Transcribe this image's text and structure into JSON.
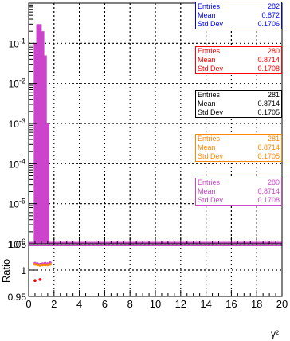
{
  "chart_data": {
    "type": "histogram",
    "xlabel": "γ²",
    "ylabel_bottom": "Ratio",
    "xlim": [
      0,
      20
    ],
    "ylim_top": [
      1e-06,
      1
    ],
    "yscale_top": "log",
    "ylim_bottom": [
      0.95,
      1.05
    ],
    "x_ticks": [
      "0",
      "2",
      "4",
      "6",
      "8",
      "10",
      "12",
      "14",
      "16",
      "18",
      "20"
    ],
    "y_ticks_top": [
      {
        "base": "10",
        "exp": "-1",
        "value": 0.1
      },
      {
        "base": "10",
        "exp": "-2",
        "value": 0.01
      },
      {
        "base": "10",
        "exp": "-3",
        "value": 0.001
      },
      {
        "base": "10",
        "exp": "-4",
        "value": 0.0001
      },
      {
        "base": "10",
        "exp": "-5",
        "value": 1e-05
      },
      {
        "base": "10",
        "exp": "-6",
        "value": 1e-06
      }
    ],
    "y_ticks_bottom": [
      "0.95",
      "1",
      "1.05"
    ],
    "grid": true,
    "bin_width": 0.2,
    "histogram": {
      "bin_low": [
        0.4,
        0.6,
        0.8,
        1.0,
        1.2,
        1.4
      ],
      "values": [
        0.1,
        0.3,
        0.3,
        0.2,
        0.05,
        0.001
      ],
      "color": "#cc44cc"
    },
    "ratio_points": [
      {
        "x": 0.5,
        "values": [
          1.013,
          1.011,
          0.98
        ]
      },
      {
        "x": 0.7,
        "values": [
          1.012,
          1.01
        ]
      },
      {
        "x": 0.9,
        "values": [
          1.011,
          1.009,
          0.982
        ]
      },
      {
        "x": 1.1,
        "values": [
          1.012,
          1.01
        ]
      },
      {
        "x": 1.3,
        "values": [
          1.013,
          1.01
        ]
      },
      {
        "x": 1.5,
        "values": [
          1.012,
          1.01
        ]
      },
      {
        "x": 1.7,
        "values": [
          1.014,
          1.011
        ]
      }
    ],
    "ratio_colors": [
      "#cc44cc",
      "#ff8800",
      "#ff0000"
    ],
    "stat_boxes": [
      {
        "color": "#0000ff",
        "entries_label": "Entries",
        "entries": "282",
        "mean_label": "Mean",
        "mean": "0.872",
        "std_label": "Std Dev",
        "std": "0.1706"
      },
      {
        "color": "#ff0000",
        "entries_label": "Entries",
        "entries": "280",
        "mean_label": "Mean",
        "mean": "0.8714",
        "std_label": "Std Dev",
        "std": "0.1708"
      },
      {
        "color": "#000000",
        "entries_label": "Entries",
        "entries": "281",
        "mean_label": "Mean",
        "mean": "0.8714",
        "std_label": "Std Dev",
        "std": "0.1705"
      },
      {
        "color": "#ff8800",
        "entries_label": "Entries",
        "entries": "281",
        "mean_label": "Mean",
        "mean": "0.8714",
        "std_label": "Std Dev",
        "std": "0.1705"
      },
      {
        "color": "#cc44cc",
        "entries_label": "Entries",
        "entries": "280",
        "mean_label": "Mean",
        "mean": "0.8714",
        "std_label": "Std Dev",
        "std": "0.1708"
      }
    ]
  }
}
